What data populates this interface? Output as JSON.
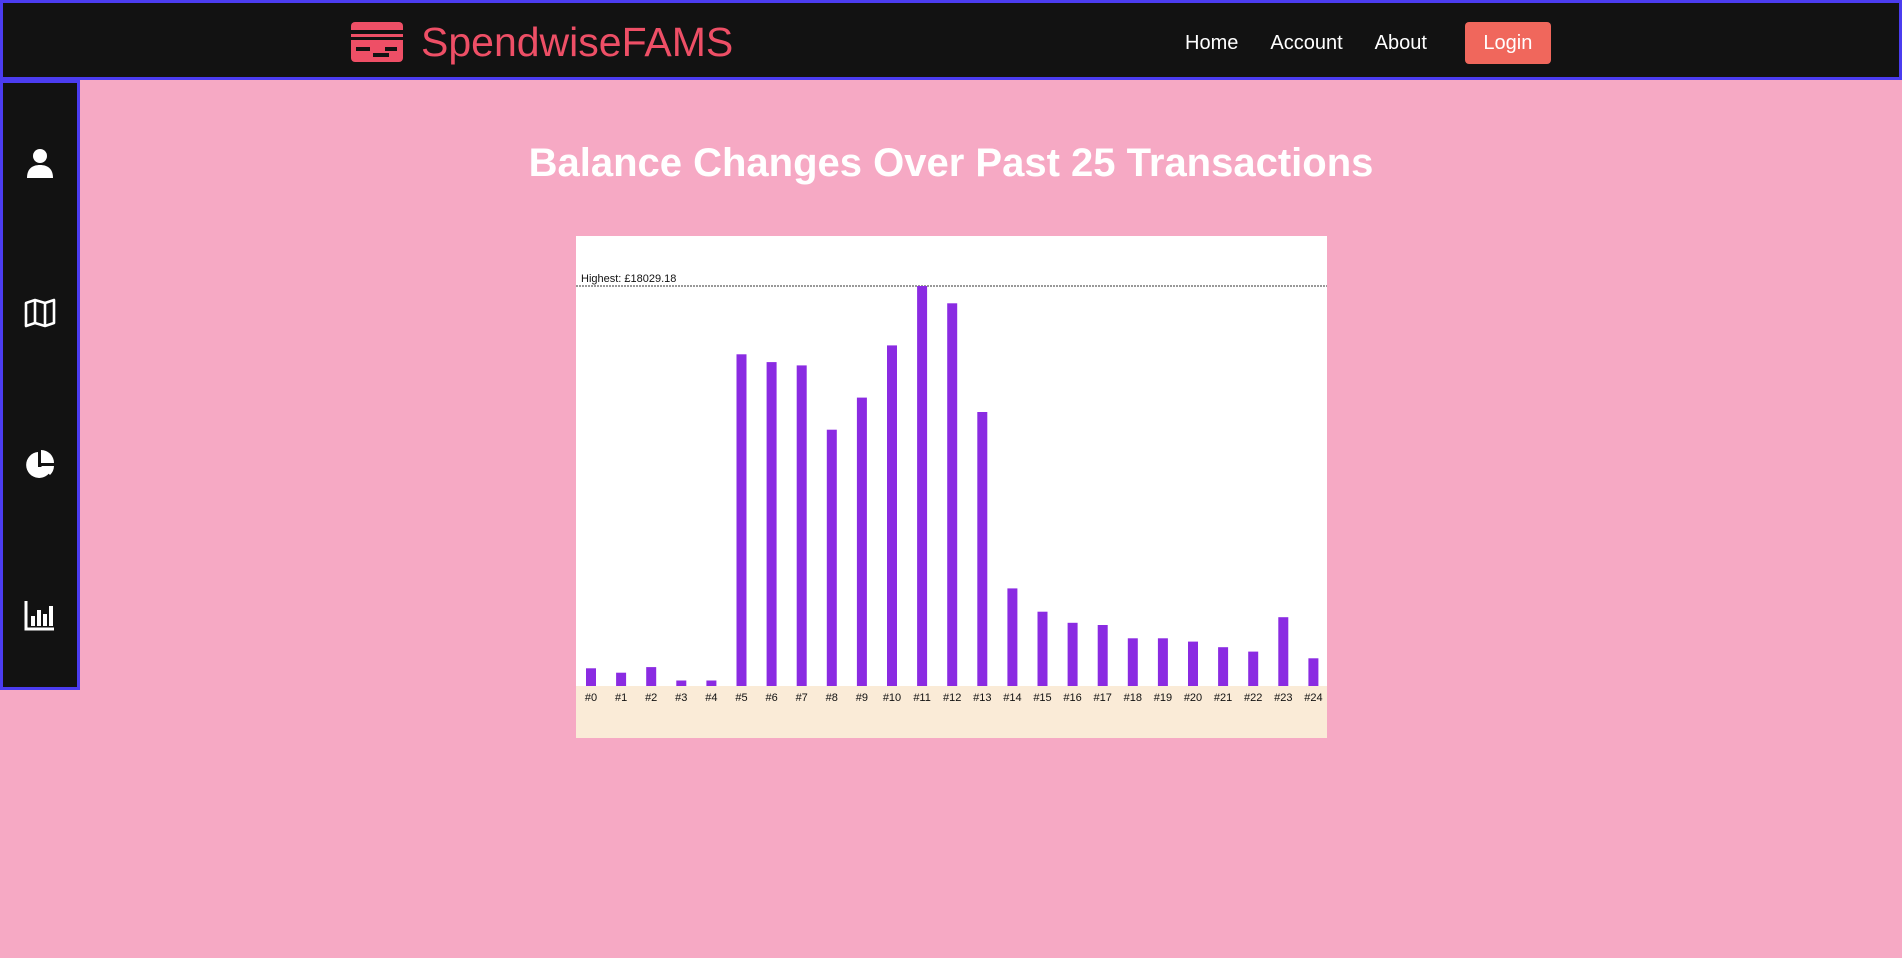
{
  "app": {
    "brand": "SpendwiseFAMS",
    "brand_icon": "credit-card-icon",
    "accent": "#ee4f66"
  },
  "nav": {
    "items": [
      {
        "label": "Home"
      },
      {
        "label": "Account"
      },
      {
        "label": "About"
      }
    ],
    "login_label": "Login",
    "login_color": "#f0675c"
  },
  "sidebar": {
    "items": [
      {
        "icon": "user-icon",
        "label": "Profile"
      },
      {
        "icon": "map-icon",
        "label": "Map"
      },
      {
        "icon": "pie-chart-icon",
        "label": "Spending breakdown"
      },
      {
        "icon": "bar-chart-icon",
        "label": "Balance chart"
      }
    ]
  },
  "page": {
    "title": "Balance Changes Over Past 25 Transactions"
  },
  "chart_data": {
    "type": "bar",
    "title": "Balance Changes Over Past 25 Transactions",
    "highest_label": "Highest: £18029.18",
    "highest_value": 18029.18,
    "categories": [
      "#0",
      "#1",
      "#2",
      "#3",
      "#4",
      "#5",
      "#6",
      "#7",
      "#8",
      "#9",
      "#10",
      "#11",
      "#12",
      "#13",
      "#14",
      "#15",
      "#16",
      "#17",
      "#18",
      "#19",
      "#20",
      "#21",
      "#22",
      "#23",
      "#24"
    ],
    "values": [
      800,
      600,
      850,
      250,
      250,
      14950,
      14600,
      14450,
      11550,
      13000,
      15350,
      18029.18,
      17250,
      12350,
      4400,
      3350,
      2850,
      2750,
      2150,
      2150,
      2000,
      1750,
      1550,
      3100,
      1250
    ],
    "bar_color": "#8a2be2",
    "axis_band_color": "#faebd7",
    "ylim": [
      0,
      18029.18
    ]
  }
}
